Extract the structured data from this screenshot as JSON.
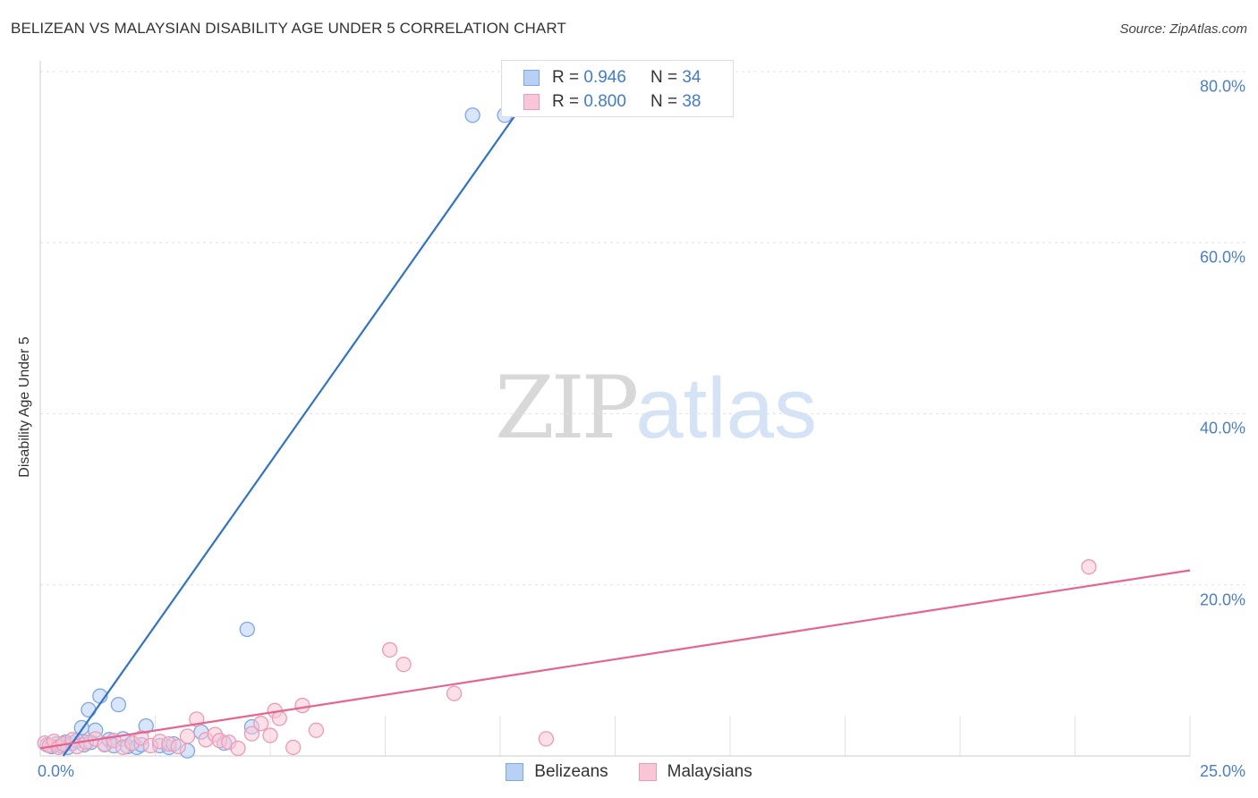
{
  "header": {
    "title": "BELIZEAN VS MALAYSIAN DISABILITY AGE UNDER 5 CORRELATION CHART",
    "source": "Source: ZipAtlas.com"
  },
  "watermark": {
    "zip": "ZIP",
    "atlas": "atlas"
  },
  "colors": {
    "blue_fill": "#b9d0f5",
    "blue_stroke": "#7aa7e8",
    "blue_line": "#2f72d0",
    "pink_fill": "#f8c6d6",
    "pink_stroke": "#ee9ab5",
    "pink_line": "#e5658e",
    "axis_text": "#4a7fcf",
    "grid": "#e2e2e2"
  },
  "stats": [
    {
      "r_label": "R = ",
      "r_value": "0.946",
      "n_label": "N = ",
      "n_value": "34"
    },
    {
      "r_label": "R = ",
      "r_value": "0.800",
      "n_label": "N = ",
      "n_value": "38"
    }
  ],
  "legend": [
    {
      "label": "Belizeans"
    },
    {
      "label": "Malaysians"
    }
  ],
  "chart_data": {
    "type": "scatter",
    "title": "BELIZEAN VS MALAYSIAN DISABILITY AGE UNDER 5 CORRELATION CHART",
    "xlabel": "",
    "ylabel": "Disability Age Under 5",
    "xlim": [
      0,
      25
    ],
    "ylim": [
      0,
      80
    ],
    "x_tick_labels": [
      "0.0%",
      "25.0%"
    ],
    "y_ticks": [
      20,
      40,
      60,
      80
    ],
    "y_tick_labels": [
      "20.0%",
      "40.0%",
      "60.0%",
      "80.0%"
    ],
    "grid": true,
    "series": [
      {
        "name": "Belizeans",
        "r": 0.946,
        "n": 34,
        "points": [
          {
            "x": 0.15,
            "y": 1.3
          },
          {
            "x": 0.25,
            "y": 1.1
          },
          {
            "x": 0.35,
            "y": 1.4
          },
          {
            "x": 0.45,
            "y": 1.2
          },
          {
            "x": 0.55,
            "y": 1.6
          },
          {
            "x": 0.6,
            "y": 1.0
          },
          {
            "x": 0.7,
            "y": 1.5
          },
          {
            "x": 0.8,
            "y": 1.8
          },
          {
            "x": 0.9,
            "y": 3.3
          },
          {
            "x": 0.95,
            "y": 1.3
          },
          {
            "x": 1.05,
            "y": 5.4
          },
          {
            "x": 1.1,
            "y": 1.6
          },
          {
            "x": 1.2,
            "y": 3.0
          },
          {
            "x": 1.3,
            "y": 7.0
          },
          {
            "x": 1.4,
            "y": 1.4
          },
          {
            "x": 1.5,
            "y": 1.9
          },
          {
            "x": 1.6,
            "y": 1.2
          },
          {
            "x": 1.7,
            "y": 6.0
          },
          {
            "x": 1.8,
            "y": 2.0
          },
          {
            "x": 1.9,
            "y": 1.1
          },
          {
            "x": 2.0,
            "y": 1.5
          },
          {
            "x": 2.1,
            "y": 1.0
          },
          {
            "x": 2.2,
            "y": 1.3
          },
          {
            "x": 2.3,
            "y": 3.5
          },
          {
            "x": 2.6,
            "y": 1.2
          },
          {
            "x": 2.8,
            "y": 1.0
          },
          {
            "x": 2.9,
            "y": 1.4
          },
          {
            "x": 3.2,
            "y": 0.6
          },
          {
            "x": 3.5,
            "y": 2.8
          },
          {
            "x": 4.0,
            "y": 1.5
          },
          {
            "x": 4.5,
            "y": 14.8
          },
          {
            "x": 4.6,
            "y": 3.4
          },
          {
            "x": 9.4,
            "y": 74.9
          },
          {
            "x": 10.1,
            "y": 74.9
          }
        ],
        "trend": {
          "x": [
            0.5,
            10.8
          ],
          "y": [
            0.0,
            78.5
          ]
        }
      },
      {
        "name": "Malaysians",
        "r": 0.8,
        "n": 38,
        "points": [
          {
            "x": 0.1,
            "y": 1.5
          },
          {
            "x": 0.2,
            "y": 1.2
          },
          {
            "x": 0.3,
            "y": 1.7
          },
          {
            "x": 0.4,
            "y": 1.0
          },
          {
            "x": 0.5,
            "y": 1.4
          },
          {
            "x": 0.7,
            "y": 1.9
          },
          {
            "x": 0.8,
            "y": 1.1
          },
          {
            "x": 1.0,
            "y": 1.6
          },
          {
            "x": 1.2,
            "y": 2.0
          },
          {
            "x": 1.4,
            "y": 1.3
          },
          {
            "x": 1.6,
            "y": 1.8
          },
          {
            "x": 1.8,
            "y": 1.0
          },
          {
            "x": 2.0,
            "y": 1.5
          },
          {
            "x": 2.2,
            "y": 2.1
          },
          {
            "x": 2.4,
            "y": 1.2
          },
          {
            "x": 2.6,
            "y": 1.7
          },
          {
            "x": 2.8,
            "y": 1.4
          },
          {
            "x": 3.0,
            "y": 1.1
          },
          {
            "x": 3.2,
            "y": 2.3
          },
          {
            "x": 3.4,
            "y": 4.3
          },
          {
            "x": 3.6,
            "y": 1.9
          },
          {
            "x": 3.8,
            "y": 2.5
          },
          {
            "x": 3.9,
            "y": 1.8
          },
          {
            "x": 4.1,
            "y": 1.6
          },
          {
            "x": 4.3,
            "y": 0.9
          },
          {
            "x": 4.6,
            "y": 2.6
          },
          {
            "x": 4.8,
            "y": 3.8
          },
          {
            "x": 5.0,
            "y": 2.4
          },
          {
            "x": 5.1,
            "y": 5.3
          },
          {
            "x": 5.2,
            "y": 4.4
          },
          {
            "x": 5.5,
            "y": 1.0
          },
          {
            "x": 5.7,
            "y": 5.9
          },
          {
            "x": 6.0,
            "y": 3.0
          },
          {
            "x": 7.6,
            "y": 12.4
          },
          {
            "x": 7.9,
            "y": 10.7
          },
          {
            "x": 9.0,
            "y": 7.3
          },
          {
            "x": 11.0,
            "y": 2.0
          },
          {
            "x": 22.8,
            "y": 22.1
          }
        ],
        "trend": {
          "x": [
            0.0,
            25.0
          ],
          "y": [
            0.9,
            21.7
          ]
        }
      }
    ]
  }
}
